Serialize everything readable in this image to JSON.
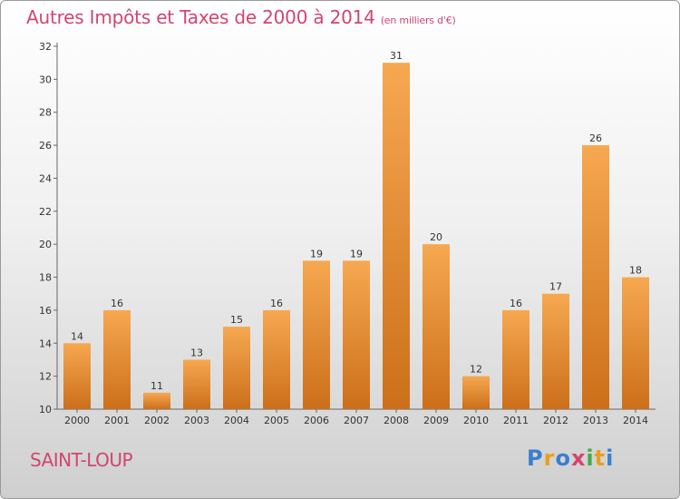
{
  "title": "Autres Impôts et Taxes de 2000 à 2014",
  "subtitle": "(en milliers d'€)",
  "commune": "SAINT-LOUP",
  "logo": {
    "letters": [
      "P",
      "r",
      "o",
      "x",
      "i",
      "t",
      "i"
    ],
    "colors": [
      "#3a7fd0",
      "#e8a020",
      "#3a7fd0",
      "#d2456e",
      "#48a848",
      "#e8a020",
      "#3a7fd0"
    ]
  },
  "colors": {
    "title": "#d2456e",
    "bar_light": "#f6a851",
    "bar_dark": "#cc6f1a"
  },
  "chart_data": {
    "type": "bar",
    "title": "Autres Impôts et Taxes de 2000 à 2014",
    "subtitle": "(en milliers d'€)",
    "categories": [
      "2000",
      "2001",
      "2002",
      "2003",
      "2004",
      "2005",
      "2006",
      "2007",
      "2008",
      "2009",
      "2010",
      "2011",
      "2012",
      "2013",
      "2014"
    ],
    "values": [
      14,
      16,
      11,
      13,
      15,
      16,
      19,
      19,
      31,
      20,
      12,
      16,
      17,
      26,
      18
    ],
    "ylim": [
      10,
      32
    ],
    "yticks": [
      10,
      12,
      14,
      16,
      18,
      20,
      22,
      24,
      26,
      28,
      30,
      32
    ],
    "xlabel": "",
    "ylabel": "",
    "grid": false,
    "legend": "none"
  }
}
